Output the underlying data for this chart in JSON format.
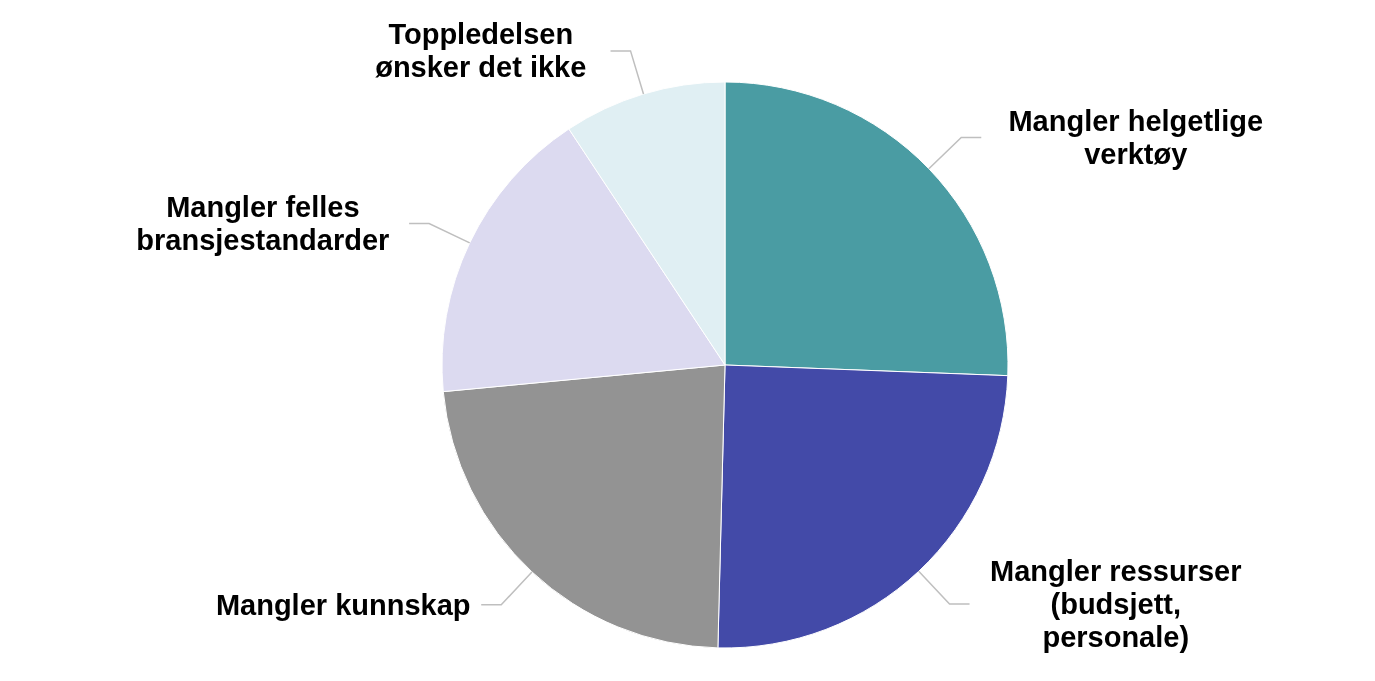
{
  "chart_data": {
    "type": "pie",
    "categories": [
      "Mangler helgetlige verktøy",
      "Mangler ressurser (budsjett, personale)",
      "Mangler kunnskap",
      "Mangler felles bransjestandarder",
      "Toppledelsen ønsker det ikke"
    ],
    "values": [
      25.6,
      24.8,
      23.1,
      17.2,
      9.3
    ],
    "colors": [
      "#4a9ca3",
      "#434aa8",
      "#939393",
      "#dcdaf0",
      "#e0eff3"
    ],
    "legend": false
  }
}
